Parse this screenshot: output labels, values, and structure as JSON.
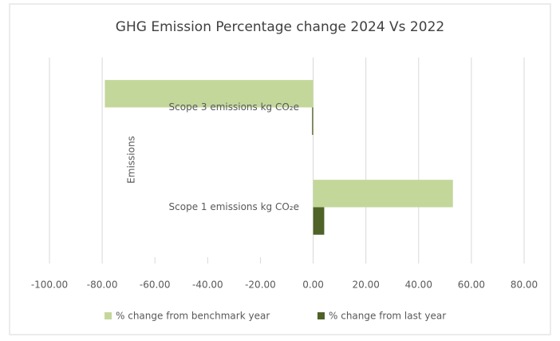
{
  "chart_data": {
    "type": "bar",
    "orientation": "horizontal",
    "title": "GHG Emission Percentage change 2024 Vs 2022",
    "ylabel": "Emissions",
    "categories": [
      "Scope 1 emissions kg CO₂e",
      "Scope 3 emissions kg CO₂e"
    ],
    "series": [
      {
        "name": "% change from benchmark year",
        "color": "#c4d79b",
        "values": [
          53,
          -79
        ]
      },
      {
        "name": "% change from last year",
        "color": "#4f6228",
        "values": [
          4.2,
          -0.4
        ]
      }
    ],
    "xlim": [
      -100,
      80
    ],
    "xticks": [
      {
        "value": -100,
        "label": "-100.00"
      },
      {
        "value": -80,
        "label": "-80.00"
      },
      {
        "value": -60,
        "label": "-60.00"
      },
      {
        "value": -40,
        "label": "-40.00"
      },
      {
        "value": -20,
        "label": "-20.00"
      },
      {
        "value": 0,
        "label": "0.00"
      },
      {
        "value": 20,
        "label": "20.00"
      },
      {
        "value": 40,
        "label": "40.00"
      },
      {
        "value": 60,
        "label": "60.00"
      },
      {
        "value": 80,
        "label": "80.00"
      }
    ],
    "grid": true,
    "legend": "bottom"
  }
}
